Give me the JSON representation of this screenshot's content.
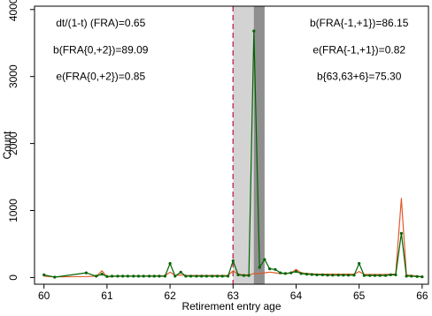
{
  "chart_data": {
    "type": "line",
    "xlabel": "Retirement entry age",
    "ylabel": "Count",
    "xlim": [
      59.85,
      66.1
    ],
    "ylim": [
      -100,
      4050
    ],
    "x_ticks": [
      60,
      61,
      62,
      63,
      64,
      65,
      66
    ],
    "x_tick_labels": [
      "60",
      "61",
      "62",
      "63",
      "64",
      "65",
      "66"
    ],
    "y_ticks": [
      0,
      1000,
      2000,
      3000,
      4000
    ],
    "y_tick_labels": [
      "0",
      "1000",
      "2000",
      "3000",
      "4000"
    ],
    "grid": false,
    "legend": "none",
    "shaded_regions": [
      {
        "x0": 63.0,
        "x1": 63.5,
        "color": "#d3d3d3"
      },
      {
        "x0": 63.33,
        "x1": 63.5,
        "color": "#8f8f8f"
      }
    ],
    "vertical_lines": [
      {
        "x": 63.0,
        "color": "#c0395a",
        "style": "dashed"
      }
    ],
    "annotations": [
      {
        "text": "dt/(1-t) (FRA)=0.65",
        "x": 60.9,
        "y": 3800
      },
      {
        "text": "b(FRA{0,+2})=89.09",
        "x": 60.9,
        "y": 3400
      },
      {
        "text": "e(FRA{0,+2})=0.85",
        "x": 60.9,
        "y": 3000
      },
      {
        "text": "b(FRA{-1,+1})=86.15",
        "x": 65.0,
        "y": 3800
      },
      {
        "text": "e(FRA{-1,+1})=0.82",
        "x": 65.0,
        "y": 3400
      },
      {
        "text": "b{63,63+6}=75.30",
        "x": 65.0,
        "y": 3000
      }
    ],
    "series": [
      {
        "color": "#006400",
        "markers": true,
        "x": [
          60,
          60.17,
          60.67,
          60.83,
          60.92,
          61,
          61.08,
          61.17,
          61.25,
          61.33,
          61.42,
          61.5,
          61.58,
          61.67,
          61.75,
          61.83,
          61.92,
          62,
          62.08,
          62.17,
          62.25,
          62.33,
          62.42,
          62.5,
          62.58,
          62.67,
          62.75,
          62.83,
          62.92,
          63,
          63.08,
          63.17,
          63.25,
          63.33,
          63.42,
          63.5,
          63.58,
          63.67,
          63.75,
          63.83,
          63.92,
          64,
          64.08,
          64.17,
          64.25,
          64.33,
          64.42,
          64.5,
          64.58,
          64.67,
          64.75,
          64.83,
          64.92,
          65,
          65.08,
          65.17,
          65.25,
          65.33,
          65.42,
          65.5,
          65.58,
          65.67,
          65.75,
          65.83,
          65.92,
          66
        ],
        "values": [
          40,
          5,
          70,
          20,
          50,
          15,
          20,
          20,
          20,
          20,
          20,
          20,
          20,
          20,
          20,
          20,
          20,
          210,
          20,
          80,
          20,
          20,
          20,
          20,
          20,
          20,
          20,
          20,
          20,
          250,
          40,
          30,
          30,
          3680,
          150,
          270,
          130,
          120,
          70,
          60,
          70,
          90,
          60,
          50,
          45,
          40,
          40,
          35,
          35,
          35,
          35,
          35,
          35,
          210,
          30,
          30,
          30,
          30,
          30,
          40,
          40,
          660,
          20,
          20,
          15,
          10
        ]
      },
      {
        "color": "#e05a2a",
        "markers": false,
        "x": [
          60,
          60.17,
          60.67,
          60.83,
          60.92,
          61,
          61.08,
          61.17,
          61.25,
          61.33,
          61.42,
          61.5,
          61.58,
          61.67,
          61.75,
          61.83,
          61.92,
          62,
          62.08,
          62.17,
          62.25,
          62.33,
          62.42,
          62.5,
          62.58,
          62.67,
          62.75,
          62.83,
          62.92,
          63,
          63.08,
          63.17,
          63.25,
          63.33,
          63.42,
          63.5,
          63.58,
          63.67,
          63.75,
          63.83,
          63.92,
          64,
          64.08,
          64.17,
          64.25,
          64.33,
          64.42,
          64.5,
          64.58,
          64.67,
          64.75,
          64.83,
          64.92,
          65,
          65.08,
          65.17,
          65.25,
          65.33,
          65.42,
          65.5,
          65.58,
          65.67,
          65.75,
          65.83,
          65.92,
          66
        ],
        "values": [
          20,
          10,
          15,
          20,
          100,
          10,
          15,
          20,
          20,
          20,
          20,
          20,
          20,
          25,
          25,
          25,
          25,
          80,
          30,
          40,
          30,
          30,
          30,
          30,
          30,
          30,
          30,
          30,
          30,
          100,
          50,
          40,
          40,
          60,
          60,
          70,
          80,
          70,
          60,
          60,
          70,
          120,
          70,
          60,
          55,
          50,
          50,
          50,
          50,
          50,
          50,
          50,
          50,
          90,
          45,
          45,
          45,
          45,
          45,
          50,
          50,
          1180,
          40,
          30,
          20,
          15
        ]
      }
    ]
  }
}
